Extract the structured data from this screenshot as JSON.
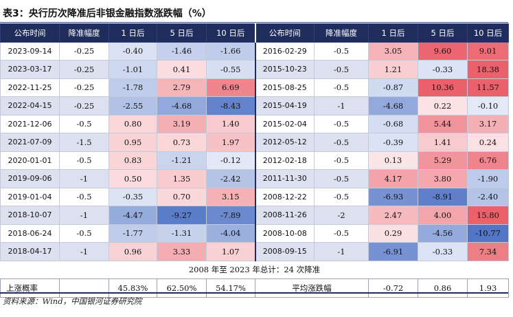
{
  "title": "表3：央行历次降准后非银金融指数涨跌幅（%）",
  "headers": [
    "公布时间",
    "降准幅度",
    "1 日后",
    "5 日后",
    "10 日后"
  ],
  "left_rows": [
    [
      "2023-09-14",
      "-0.25",
      "-0.40",
      "-1.46",
      "-1.66"
    ],
    [
      "2023-03-17",
      "-0.25",
      "-1.01",
      "0.41",
      "-0.55"
    ],
    [
      "2022-11-25",
      "-0.25",
      "-1.78",
      "2.79",
      "6.69"
    ],
    [
      "2022-04-15",
      "-0.25",
      "-2.55",
      "-4.68",
      "-8.43"
    ],
    [
      "2021-12-06",
      "-0.5",
      "0.80",
      "3.19",
      "1.40"
    ],
    [
      "2021-07-09",
      "-1.5",
      "0.95",
      "0.73",
      "1.97"
    ],
    [
      "2020-01-01",
      "-0.5",
      "0.83",
      "-1.21",
      "-0.12"
    ],
    [
      "2019-09-06",
      "-1",
      "0.50",
      "1.35",
      "-2.42"
    ],
    [
      "2019-01-04",
      "-0.5",
      "-0.35",
      "0.70",
      "3.15"
    ],
    [
      "2018-10-07",
      "-1",
      "-4.47",
      "-9.27",
      "-7.89"
    ],
    [
      "2018-06-24",
      "-0.5",
      "-1.77",
      "-1.31",
      "-4.04"
    ],
    [
      "2018-04-17",
      "-1",
      "0.96",
      "3.33",
      "1.07"
    ]
  ],
  "right_rows": [
    [
      "2016-02-29",
      "-0.5",
      "3.05",
      "9.60",
      "9.01"
    ],
    [
      "2015-10-23",
      "-0.5",
      "1.21",
      "-0.33",
      "18.38"
    ],
    [
      "2015-08-25",
      "-0.5",
      "-0.87",
      "10.36",
      "11.57"
    ],
    [
      "2015-04-19",
      "-1",
      "-4.68",
      "0.22",
      "-0.10"
    ],
    [
      "2015-02-04",
      "-0.5",
      "-0.68",
      "5.44",
      "3.17"
    ],
    [
      "2012-05-12",
      "-0.5",
      "-0.39",
      "1.41",
      "0.24"
    ],
    [
      "2012-02-18",
      "-0.5",
      "0.13",
      "5.29",
      "6.76"
    ],
    [
      "2011-11-30",
      "-0.5",
      "4.17",
      "3.80",
      "-1.90"
    ],
    [
      "2008-12-22",
      "-0.5",
      "-6.93",
      "-8.91",
      "-2.40"
    ],
    [
      "2008-11-26",
      "-2",
      "2.47",
      "4.00",
      "15.80"
    ],
    [
      "2008-10-08",
      "-0.5",
      "0.29",
      "-4.56",
      "-10.77"
    ],
    [
      "2008-09-15",
      "-1",
      "-6.91",
      "-0.33",
      "7.34"
    ]
  ],
  "summary_text": "2008 年至 2023 年总计：24 次降准",
  "stats": {
    "up_prob_label": "上涨概率",
    "up_prob_1d": "45.83%",
    "up_prob_5d": "62.50%",
    "up_prob_10d": "54.17%",
    "avg_label": "平均涨跌幅",
    "avg_1d": "-0.72",
    "avg_5d": "0.86",
    "avg_10d": "1.93"
  },
  "source": "资料来源：Wind，中国银河证券研究院",
  "colors": {
    "header_bg": "#1f2d5c",
    "positive": "#e8505b",
    "negative": "#3f66c0",
    "stripe": "#dde1ef"
  }
}
